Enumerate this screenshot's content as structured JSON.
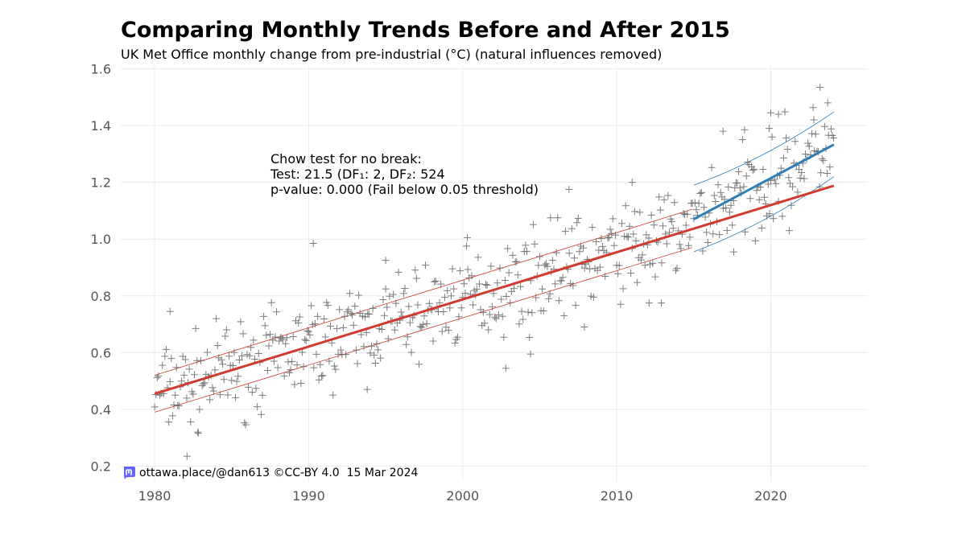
{
  "chart_data": {
    "type": "scatter",
    "title": "Comparing Monthly Trends Before and After 2015",
    "subtitle": "UK Met Office monthly change from pre-industrial (°C) (natural influences removed)",
    "xlim": [
      1977.8,
      2026.3
    ],
    "ylim": [
      0.17,
      1.61
    ],
    "x_ticks": [
      1980,
      1990,
      2000,
      2010,
      2020
    ],
    "y_ticks": [
      0.2,
      0.4,
      0.6,
      0.8,
      1.0,
      1.2,
      1.4,
      1.6
    ],
    "grid": true,
    "annotation": {
      "line1": "Chow test for no break:",
      "line2": "Test: 21.5 (DF₁: 2, DF₂: 524",
      "line3": "p-value: 0.000 (Fail below 0.05 threshold)"
    },
    "trend_full": {
      "color": "#d13a2f",
      "x_range": [
        1980.0,
        2024.1
      ],
      "y_range": [
        0.455,
        1.188
      ],
      "band_x_range": [
        1980.0,
        2014.9
      ],
      "band_low": [
        0.39,
        0.97
      ],
      "band_high": [
        0.52,
        1.105
      ]
    },
    "trend_post_2015": {
      "color": "#2f7fb6",
      "x_range": [
        2015.0,
        2024.1
      ],
      "y_range": [
        1.07,
        1.333
      ],
      "band_low": [
        0.955,
        1.22
      ],
      "band_high": [
        1.19,
        1.448
      ]
    },
    "scatter_color": "#666666",
    "scatter_noise_amplitude": 0.16,
    "outliers": [
      {
        "x": 1981.0,
        "y": 0.745
      },
      {
        "x": 1982.1,
        "y": 0.235
      },
      {
        "x": 1982.8,
        "y": 0.32
      },
      {
        "x": 1990.3,
        "y": 0.985
      },
      {
        "x": 1993.8,
        "y": 0.47
      },
      {
        "x": 1995.0,
        "y": 0.925
      },
      {
        "x": 2000.3,
        "y": 1.005
      },
      {
        "x": 2002.8,
        "y": 0.545
      },
      {
        "x": 2004.4,
        "y": 0.595
      },
      {
        "x": 2005.7,
        "y": 1.075
      },
      {
        "x": 2006.9,
        "y": 1.175
      },
      {
        "x": 2007.9,
        "y": 0.69
      },
      {
        "x": 2011.0,
        "y": 1.2
      },
      {
        "x": 2012.1,
        "y": 0.775
      },
      {
        "x": 2012.9,
        "y": 0.775
      },
      {
        "x": 2016.9,
        "y": 1.38
      },
      {
        "x": 2017.6,
        "y": 0.955
      },
      {
        "x": 2020.0,
        "y": 1.445
      },
      {
        "x": 2020.5,
        "y": 1.44
      },
      {
        "x": 2021.2,
        "y": 1.03
      },
      {
        "x": 2023.2,
        "y": 1.535
      },
      {
        "x": 2023.7,
        "y": 1.48
      },
      {
        "x": 2022.8,
        "y": 1.42
      },
      {
        "x": 2019.9,
        "y": 1.39
      },
      {
        "x": 2018.3,
        "y": 1.385
      }
    ],
    "footer": {
      "handle": "ottawa.place/@dan613 ©CC-BY 4.0",
      "date": "15 Mar 2024",
      "icon": "mastodon-icon",
      "icon_color": "#6364ff"
    }
  }
}
